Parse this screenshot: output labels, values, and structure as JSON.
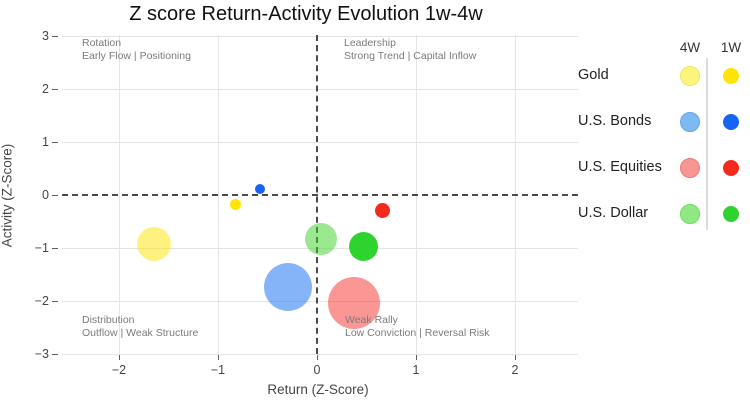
{
  "title": "Z score Return-Activity Evolution 1w-4w",
  "chart_data": {
    "type": "scatter",
    "title": "Z score Return-Activity Evolution 1w-4w",
    "xlabel": "Return (Z-Score)",
    "ylabel": "Activity (Z-Score)",
    "xlim": [
      -2.58,
      2.64
    ],
    "ylim": [
      -3,
      3.02
    ],
    "x_ticks": [
      -2,
      -1,
      0,
      1,
      2
    ],
    "y_ticks": [
      3,
      2,
      1,
      0,
      -1,
      -2,
      -3
    ],
    "grid": true,
    "zero_lines": "dashed",
    "quadrant_labels": [
      {
        "position": "top-left",
        "title": "Rotation",
        "subtitle": "Early Flow | Positioning"
      },
      {
        "position": "top-right",
        "title": "Leadership",
        "subtitle": "Strong Trend | Capital Inflow"
      },
      {
        "position": "bottom-left",
        "title": "Distribution",
        "subtitle": "Outflow | Weak Structure"
      },
      {
        "position": "bottom-right",
        "title": "Weak Rally",
        "subtitle": "Low Conviction | Reversal Risk"
      }
    ],
    "series": [
      {
        "name": "Gold",
        "period": "4W",
        "x": -1.65,
        "y": -0.93,
        "radius_px": 17,
        "color": "rgba(255,228,0,0.5)"
      },
      {
        "name": "U.S. Bonds",
        "period": "4W",
        "x": -0.29,
        "y": -1.74,
        "radius_px": 24,
        "color": "rgba(33,120,243,0.55)"
      },
      {
        "name": "U.S. Equities",
        "period": "4W",
        "x": 0.37,
        "y": -2.04,
        "radius_px": 26,
        "color": "rgba(244,38,31,0.48)"
      },
      {
        "name": "U.S. Dollar",
        "period": "4W",
        "x": 0.04,
        "y": -0.83,
        "radius_px": 16,
        "color": "rgba(58,210,35,0.5)"
      },
      {
        "name": "Gold",
        "period": "1W",
        "x": -0.82,
        "y": -0.17,
        "radius_px": 5.5,
        "color": "#ffe405"
      },
      {
        "name": "U.S. Bonds",
        "period": "1W",
        "x": -0.58,
        "y": 0.11,
        "radius_px": 5,
        "color": "#1565f2"
      },
      {
        "name": "U.S. Equities",
        "period": "1W",
        "x": 0.66,
        "y": -0.3,
        "radius_px": 7.5,
        "color": "#f42a1e"
      },
      {
        "name": "U.S. Dollar",
        "period": "1W",
        "x": 0.47,
        "y": -0.98,
        "radius_px": 14.5,
        "color": "#2fd32f"
      }
    ]
  },
  "legend": {
    "col_headers": [
      "4W",
      "1W"
    ],
    "rows": [
      {
        "label": "Gold",
        "color_4w": "#fbf57d",
        "border_4w": "#f0e55e",
        "color_1w": "#ffe405"
      },
      {
        "label": "U.S. Bonds",
        "color_4w": "#7fb9f2",
        "border_4w": "#61a6ee",
        "color_1w": "#1565f2"
      },
      {
        "label": "U.S. Equities",
        "color_4w": "#f69693",
        "border_4w": "#f07975",
        "color_1w": "#f42a1e"
      },
      {
        "label": "U.S. Dollar",
        "color_4w": "#90e882",
        "border_4w": "#6edc62",
        "color_1w": "#2fd32f"
      }
    ]
  }
}
